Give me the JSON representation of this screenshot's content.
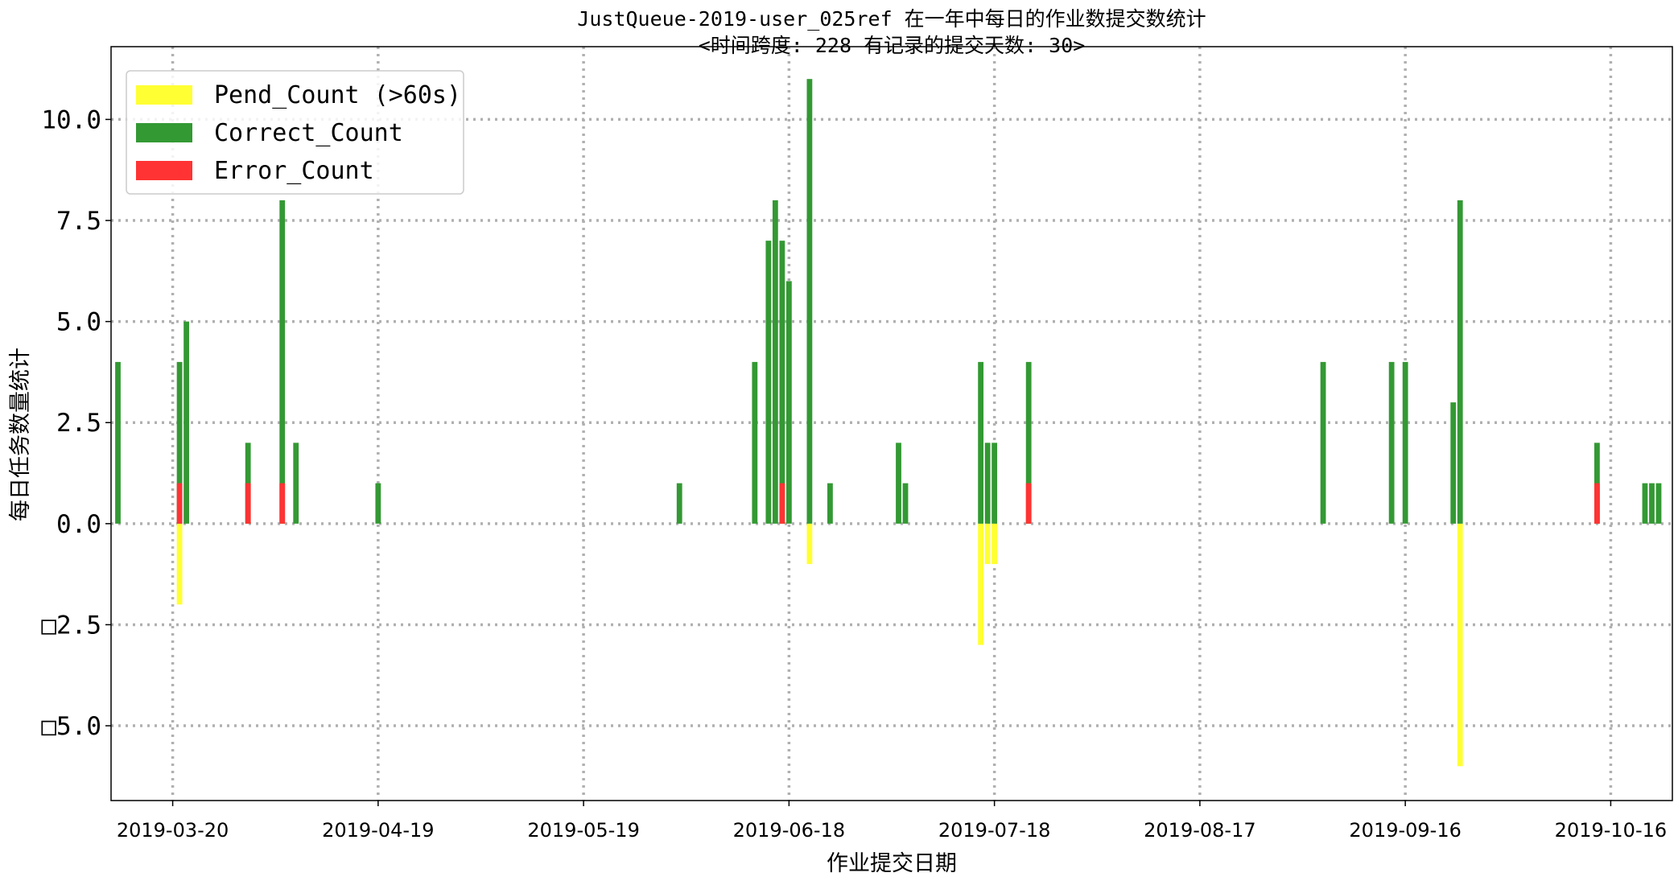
{
  "chart_data": {
    "type": "bar",
    "title_line1": "JustQueue-2019-user_025ref 在一年中每日的作业数提交数统计",
    "title_line2": "<时间跨度: 228  有记录的提交天数: 30>",
    "xlabel": "作业提交日期",
    "ylabel": "每日任务数量统计",
    "x_axis_type": "date",
    "xlim": [
      "2019-03-11",
      "2019-10-25"
    ],
    "ylim": [
      -6.85,
      11.8
    ],
    "x_ticks": [
      "2019-03-20",
      "2019-04-19",
      "2019-05-19",
      "2019-06-18",
      "2019-07-18",
      "2019-08-17",
      "2019-09-16",
      "2019-10-16"
    ],
    "y_ticks": [
      -5.0,
      -2.5,
      0.0,
      2.5,
      5.0,
      7.5,
      10.0
    ],
    "y_tick_labels": [
      "□5.0",
      "□2.5",
      "0.0",
      "2.5",
      "5.0",
      "7.5",
      "10.0"
    ],
    "grid": true,
    "legend_position": "top-left",
    "colors": {
      "pend": "#ffff33",
      "correct": "#339933",
      "error": "#ff3333"
    },
    "series": [
      {
        "name": "Pend_Count (>60s)",
        "key": "pend",
        "points": [
          {
            "x": "2019-03-21",
            "y": -2
          },
          {
            "x": "2019-06-21",
            "y": -1
          },
          {
            "x": "2019-07-16",
            "y": -3
          },
          {
            "x": "2019-07-17",
            "y": -1
          },
          {
            "x": "2019-07-18",
            "y": -1
          },
          {
            "x": "2019-09-24",
            "y": -6
          }
        ]
      },
      {
        "name": "Correct_Count",
        "key": "correct",
        "points": [
          {
            "x": "2019-03-12",
            "y": 4
          },
          {
            "x": "2019-03-21",
            "y": 4
          },
          {
            "x": "2019-03-22",
            "y": 5
          },
          {
            "x": "2019-03-31",
            "y": 2
          },
          {
            "x": "2019-04-05",
            "y": 8
          },
          {
            "x": "2019-04-07",
            "y": 2
          },
          {
            "x": "2019-04-19",
            "y": 1
          },
          {
            "x": "2019-06-02",
            "y": 1
          },
          {
            "x": "2019-06-13",
            "y": 4
          },
          {
            "x": "2019-06-15",
            "y": 7
          },
          {
            "x": "2019-06-16",
            "y": 8
          },
          {
            "x": "2019-06-17",
            "y": 7
          },
          {
            "x": "2019-06-18",
            "y": 6
          },
          {
            "x": "2019-06-21",
            "y": 11
          },
          {
            "x": "2019-06-24",
            "y": 1
          },
          {
            "x": "2019-07-04",
            "y": 2
          },
          {
            "x": "2019-07-05",
            "y": 1
          },
          {
            "x": "2019-07-16",
            "y": 4
          },
          {
            "x": "2019-07-17",
            "y": 2
          },
          {
            "x": "2019-07-18",
            "y": 2
          },
          {
            "x": "2019-07-23",
            "y": 4
          },
          {
            "x": "2019-09-04",
            "y": 4
          },
          {
            "x": "2019-09-14",
            "y": 4
          },
          {
            "x": "2019-09-16",
            "y": 4
          },
          {
            "x": "2019-09-23",
            "y": 3
          },
          {
            "x": "2019-09-24",
            "y": 8
          },
          {
            "x": "2019-10-14",
            "y": 2
          },
          {
            "x": "2019-10-21",
            "y": 1
          },
          {
            "x": "2019-10-22",
            "y": 1
          },
          {
            "x": "2019-10-23",
            "y": 1
          }
        ]
      },
      {
        "name": "Error_Count",
        "key": "error",
        "points": [
          {
            "x": "2019-03-21",
            "y": 1
          },
          {
            "x": "2019-03-31",
            "y": 1
          },
          {
            "x": "2019-04-05",
            "y": 1
          },
          {
            "x": "2019-06-17",
            "y": 1
          },
          {
            "x": "2019-07-23",
            "y": 1
          },
          {
            "x": "2019-10-14",
            "y": 1
          }
        ]
      }
    ]
  }
}
